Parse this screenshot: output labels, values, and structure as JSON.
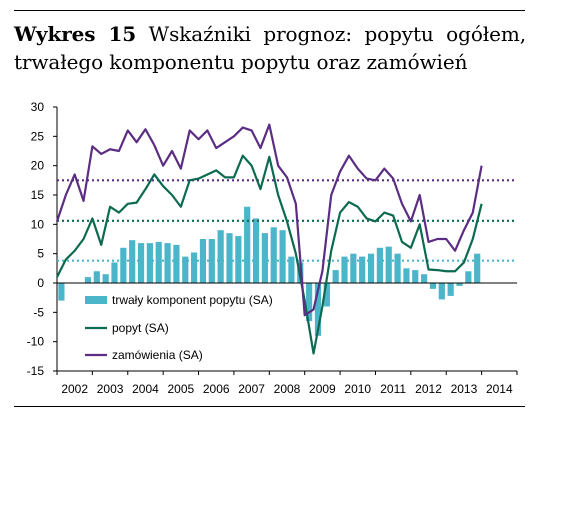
{
  "caption": {
    "figure_label": "Wykres 15",
    "title": "Wskaźniki prognoz: popytu ogółem, trwałego komponentu popytu oraz zamówień"
  },
  "chart_data": {
    "type": "bar+line",
    "ylim": [
      -15,
      30
    ],
    "yticks": [
      "30",
      "25",
      "20",
      "15",
      "10",
      "5",
      "0",
      "-5",
      "-10",
      "-15"
    ],
    "xticks": [
      "2002",
      "2003",
      "2004",
      "2005",
      "2006",
      "2007",
      "2008",
      "2009",
      "2010",
      "2011",
      "2012",
      "2013",
      "2014"
    ],
    "x_start": 2002.0,
    "step": 0.25,
    "legend_position": "bottom-left",
    "series": [
      {
        "name": "trwały komponent popytu (SA)",
        "kind": "bar",
        "color": "#4bb6c9",
        "values": [
          -3,
          0,
          0,
          1,
          2,
          1.5,
          3.5,
          6,
          7.3,
          6.8,
          6.8,
          7,
          6.8,
          6.5,
          4.5,
          5.2,
          7.5,
          7.5,
          9,
          8.5,
          8,
          13,
          11,
          8.5,
          9.5,
          9,
          4.5,
          3.5,
          -6.5,
          -9,
          -4,
          2.2,
          4.5,
          5,
          4.5,
          5,
          6,
          6.2,
          5,
          2.5,
          2.2,
          1.5,
          -1,
          -2.8,
          -2.2,
          -0.5,
          2,
          5
        ]
      },
      {
        "name": "popyt (SA)",
        "kind": "line",
        "color": "#0b6a50",
        "values": [
          1,
          4,
          5.5,
          7.5,
          11,
          6.5,
          13,
          12,
          13.5,
          13.7,
          16,
          18.5,
          16.5,
          15,
          13,
          17.5,
          17.8,
          18.5,
          19.2,
          18,
          18,
          21.7,
          20,
          16,
          21.5,
          15,
          10.5,
          5,
          -3,
          -12,
          -4,
          5.5,
          12,
          13.8,
          13,
          11,
          10.5,
          12,
          11.5,
          7,
          6,
          10,
          2.3,
          2.2,
          2,
          2,
          3.5,
          7.5,
          13.5
        ]
      },
      {
        "name": "zamówienia (SA)",
        "kind": "line",
        "color": "#5b2d83",
        "values": [
          10.5,
          15,
          18.5,
          14,
          23.3,
          22,
          22.8,
          22.5,
          26,
          24,
          26.2,
          23.5,
          20,
          22.5,
          19.5,
          26,
          24.5,
          26,
          23,
          24,
          25,
          26.5,
          26,
          23,
          27,
          20,
          18,
          13.5,
          -5.5,
          -4.5,
          2,
          15,
          19,
          21.7,
          19.5,
          17.8,
          17.5,
          19.5,
          17.8,
          13.5,
          10.5,
          15,
          7,
          7.5,
          7.5,
          5.5,
          9,
          12,
          20
        ]
      }
    ],
    "reference_lines": [
      {
        "series": "zamówienia (SA)",
        "value": 17.5,
        "color": "#5b2d83"
      },
      {
        "series": "popyt (SA)",
        "value": 10.6,
        "color": "#0b6a50"
      },
      {
        "series": "trwały komponent popytu (SA)",
        "value": 3.8,
        "color": "#4bb6c9"
      }
    ]
  }
}
